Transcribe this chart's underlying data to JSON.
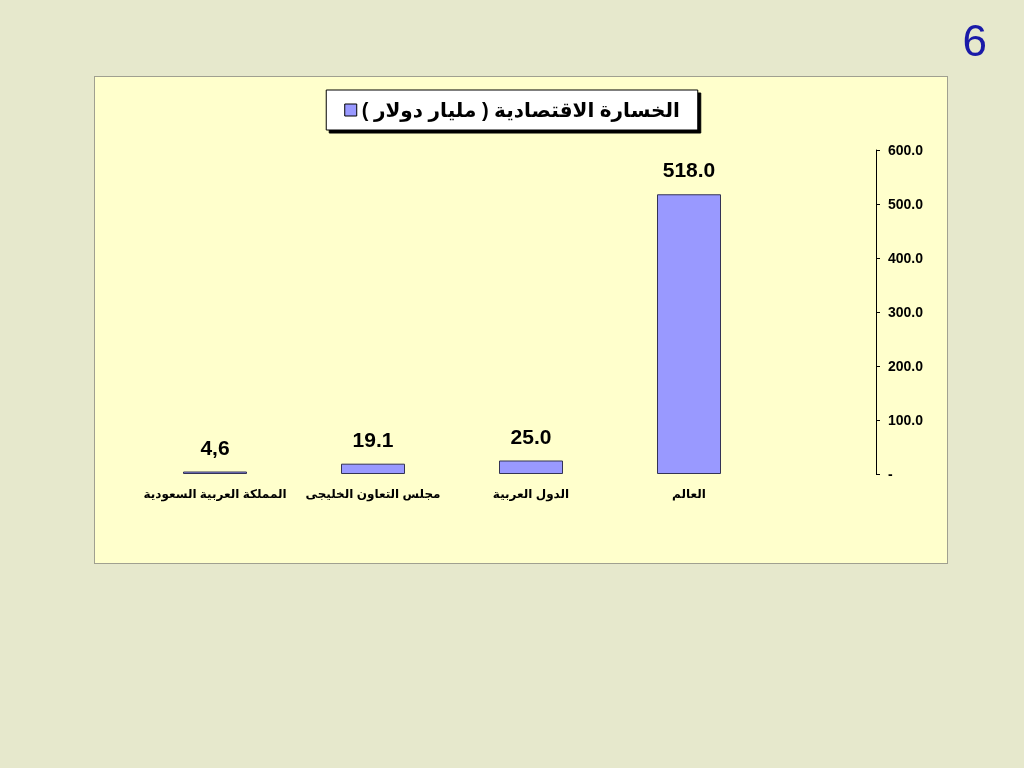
{
  "chart_data": {
    "type": "bar",
    "categories": [
      "المملكة العربية السعودية",
      "مجلس التعاون الخليجى",
      "الدول العربية",
      "العالم"
    ],
    "series": [
      {
        "name": "الخسارة الاقتصادية ( مليار دولار )",
        "color": "#9999ff",
        "values": [
          4.6,
          19.1,
          25.0,
          518.0
        ],
        "value_labels": [
          "4,6",
          "19.1",
          "25.0",
          "518.0"
        ]
      }
    ],
    "ylim": [
      0,
      600
    ],
    "yticks": [
      {
        "value": 0,
        "label": "-"
      },
      {
        "value": 100,
        "label": "100.0"
      },
      {
        "value": 200,
        "label": "200.0"
      },
      {
        "value": 300,
        "label": "300.0"
      },
      {
        "value": 400,
        "label": "400.0"
      },
      {
        "value": 500,
        "label": "500.0"
      },
      {
        "value": 600,
        "label": "600.0"
      }
    ],
    "grid": false,
    "legend": "top",
    "annotations": [
      "6"
    ]
  }
}
